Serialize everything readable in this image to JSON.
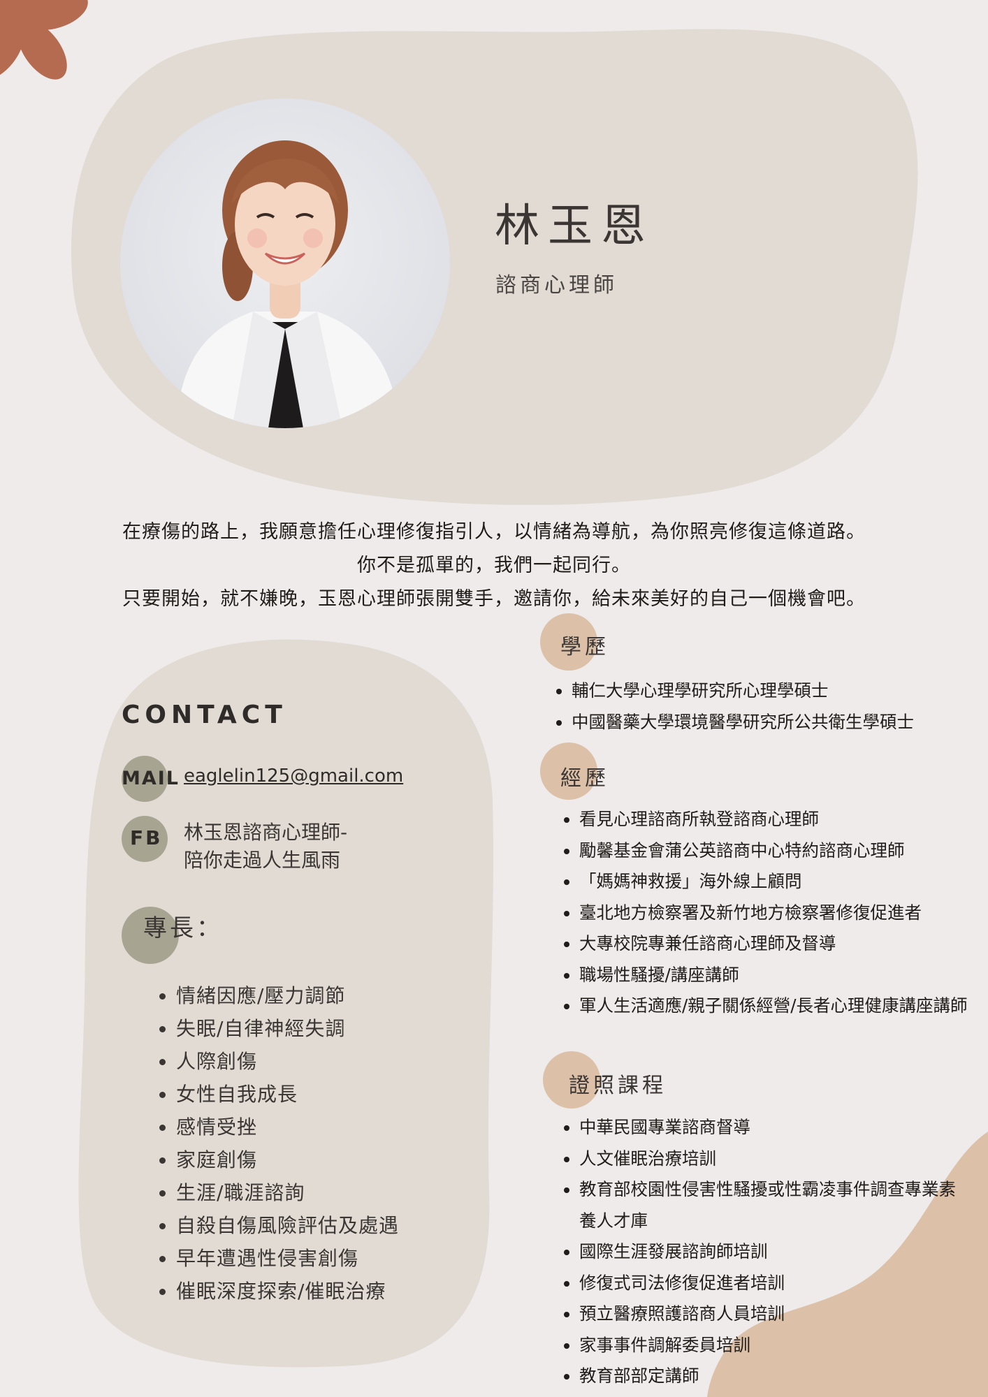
{
  "colors": {
    "background": "#efebea",
    "panel": "#e1dbd4",
    "accent_olive": "#a7a592",
    "accent_tan": "#dcc1a8",
    "accent_rust": "#b46b4f"
  },
  "profile": {
    "name": "林玉恩",
    "role": "諮商心理師"
  },
  "intro": [
    "在療傷的路上，我願意擔任心理修復指引人，以情緒為導航，為你照亮修復這條道路。",
    "你不是孤單的，我們一起同行。",
    "只要開始，就不嫌晚，玉恩心理師張開雙手，邀請你，給未來美好的自己一個機會吧。"
  ],
  "contact": {
    "title": "CONTACT",
    "mail_label": "MAIL",
    "mail_value": "eaglelin125@gmail.com",
    "fb_label": "FB",
    "fb_value_line1": "林玉恩諮商心理師-",
    "fb_value_line2": "陪你走過人生風雨"
  },
  "skills": {
    "title": "專長：",
    "items": [
      "情緒因應/壓力調節",
      "失眠/自律神經失調",
      "人際創傷",
      "女性自我成長",
      "感情受挫",
      "家庭創傷",
      "生涯/職涯諮詢",
      "自殺自傷風險評估及處遇",
      "早年遭遇性侵害創傷",
      "催眠深度探索/催眠治療"
    ]
  },
  "education": {
    "title": "學歷",
    "items": [
      "輔仁大學心理學研究所心理學碩士",
      "中國醫藥大學環境醫學研究所公共衛生學碩士"
    ]
  },
  "experience": {
    "title": "經歷",
    "items": [
      "看見心理諮商所執登諮商心理師",
      "勵馨基金會蒲公英諮商中心特約諮商心理師",
      "「媽媽神救援」海外線上顧問",
      "臺北地方檢察署及新竹地方檢察署修復促進者",
      "大專校院專兼任諮商心理師及督導",
      "職場性騷擾/講座講師",
      "軍人生活適應/親子關係經營/長者心理健康講座講師"
    ]
  },
  "certificates": {
    "title": "證照課程",
    "items": [
      "中華民國專業諮商督導",
      "人文催眠治療培訓",
      "教育部校園性侵害性騷擾或性霸凌事件調查專業素養人才庫",
      "國際生涯發展諮詢師培訓",
      "修復式司法修復促進者培訓",
      "預立醫療照護諮商人員培訓",
      "家事事件調解委員培訓",
      "教育部部定講師"
    ]
  }
}
